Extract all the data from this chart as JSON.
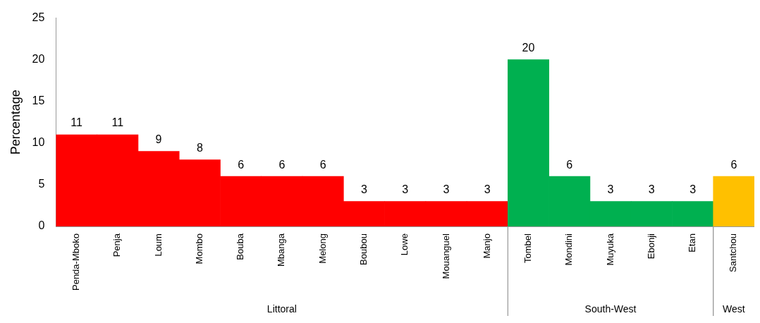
{
  "chart_data": {
    "type": "bar",
    "ylabel": "Percentage",
    "categories": [
      "Penda-Mboko",
      "Penja",
      "Loum",
      "Mombo",
      "Bouba",
      "Mbanga",
      "Melong",
      "Boubou",
      "Lowe",
      "Mouanguel",
      "Manjo",
      "Tombel",
      "Mondini",
      "Muyuka",
      "Ebonji",
      "Etan",
      "Santchou"
    ],
    "values": [
      11,
      11,
      9,
      8,
      6,
      6,
      6,
      3,
      3,
      3,
      3,
      20,
      6,
      3,
      3,
      3,
      6
    ],
    "colors": [
      "#ff0000",
      "#ff0000",
      "#ff0000",
      "#ff0000",
      "#ff0000",
      "#ff0000",
      "#ff0000",
      "#ff0000",
      "#ff0000",
      "#ff0000",
      "#ff0000",
      "#00b050",
      "#00b050",
      "#00b050",
      "#00b050",
      "#00b050",
      "#ffc000"
    ],
    "ylim": [
      0,
      25
    ],
    "yticks": [
      0,
      5,
      10,
      15,
      20,
      25
    ],
    "grid": false,
    "legend": false,
    "data_labels": true,
    "annotations": [
      "Littoral",
      "South-West",
      "West"
    ]
  }
}
